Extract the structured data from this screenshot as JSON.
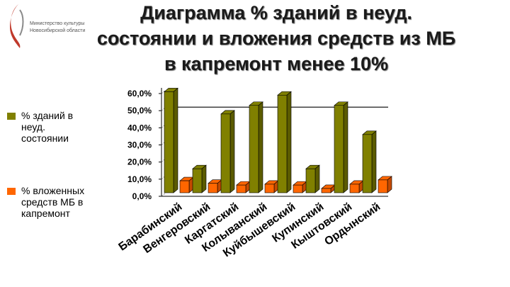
{
  "logo": {
    "line1": "Министерство культуры",
    "line2": "Новосибирской области"
  },
  "title": {
    "line1": "Диаграмма % зданий в неуд.",
    "line2": "состоянии и вложения средств из МБ",
    "line3": "в капремонт менее 10%"
  },
  "colors": {
    "series1": "#808000",
    "series2": "#ff6600",
    "series1_dark": "#5b5b00",
    "series2_dark": "#c44a00"
  },
  "chart_data": {
    "type": "bar",
    "categories": [
      "Барабинский",
      "Венгеровский",
      "Каргатский",
      "Колыванский",
      "Куйбышевский",
      "Купинский",
      "Кыштовский",
      "Ордынский"
    ],
    "series": [
      {
        "name": "% зданий в неуд. состоянии",
        "values": [
          59,
          14,
          46,
          51,
          57,
          14,
          51,
          34
        ]
      },
      {
        "name": "% вложенных средств МБ в капремонт",
        "values": [
          7,
          5.5,
          4.5,
          5,
          4.5,
          2.5,
          5,
          7.5
        ]
      }
    ],
    "yticks": [
      "0,0%",
      "10,0%",
      "20,0%",
      "30,0%",
      "40,0%",
      "50,0%",
      "60,0%"
    ],
    "ylim": [
      0,
      60
    ],
    "reference_line": 50,
    "legend_position": "left"
  }
}
